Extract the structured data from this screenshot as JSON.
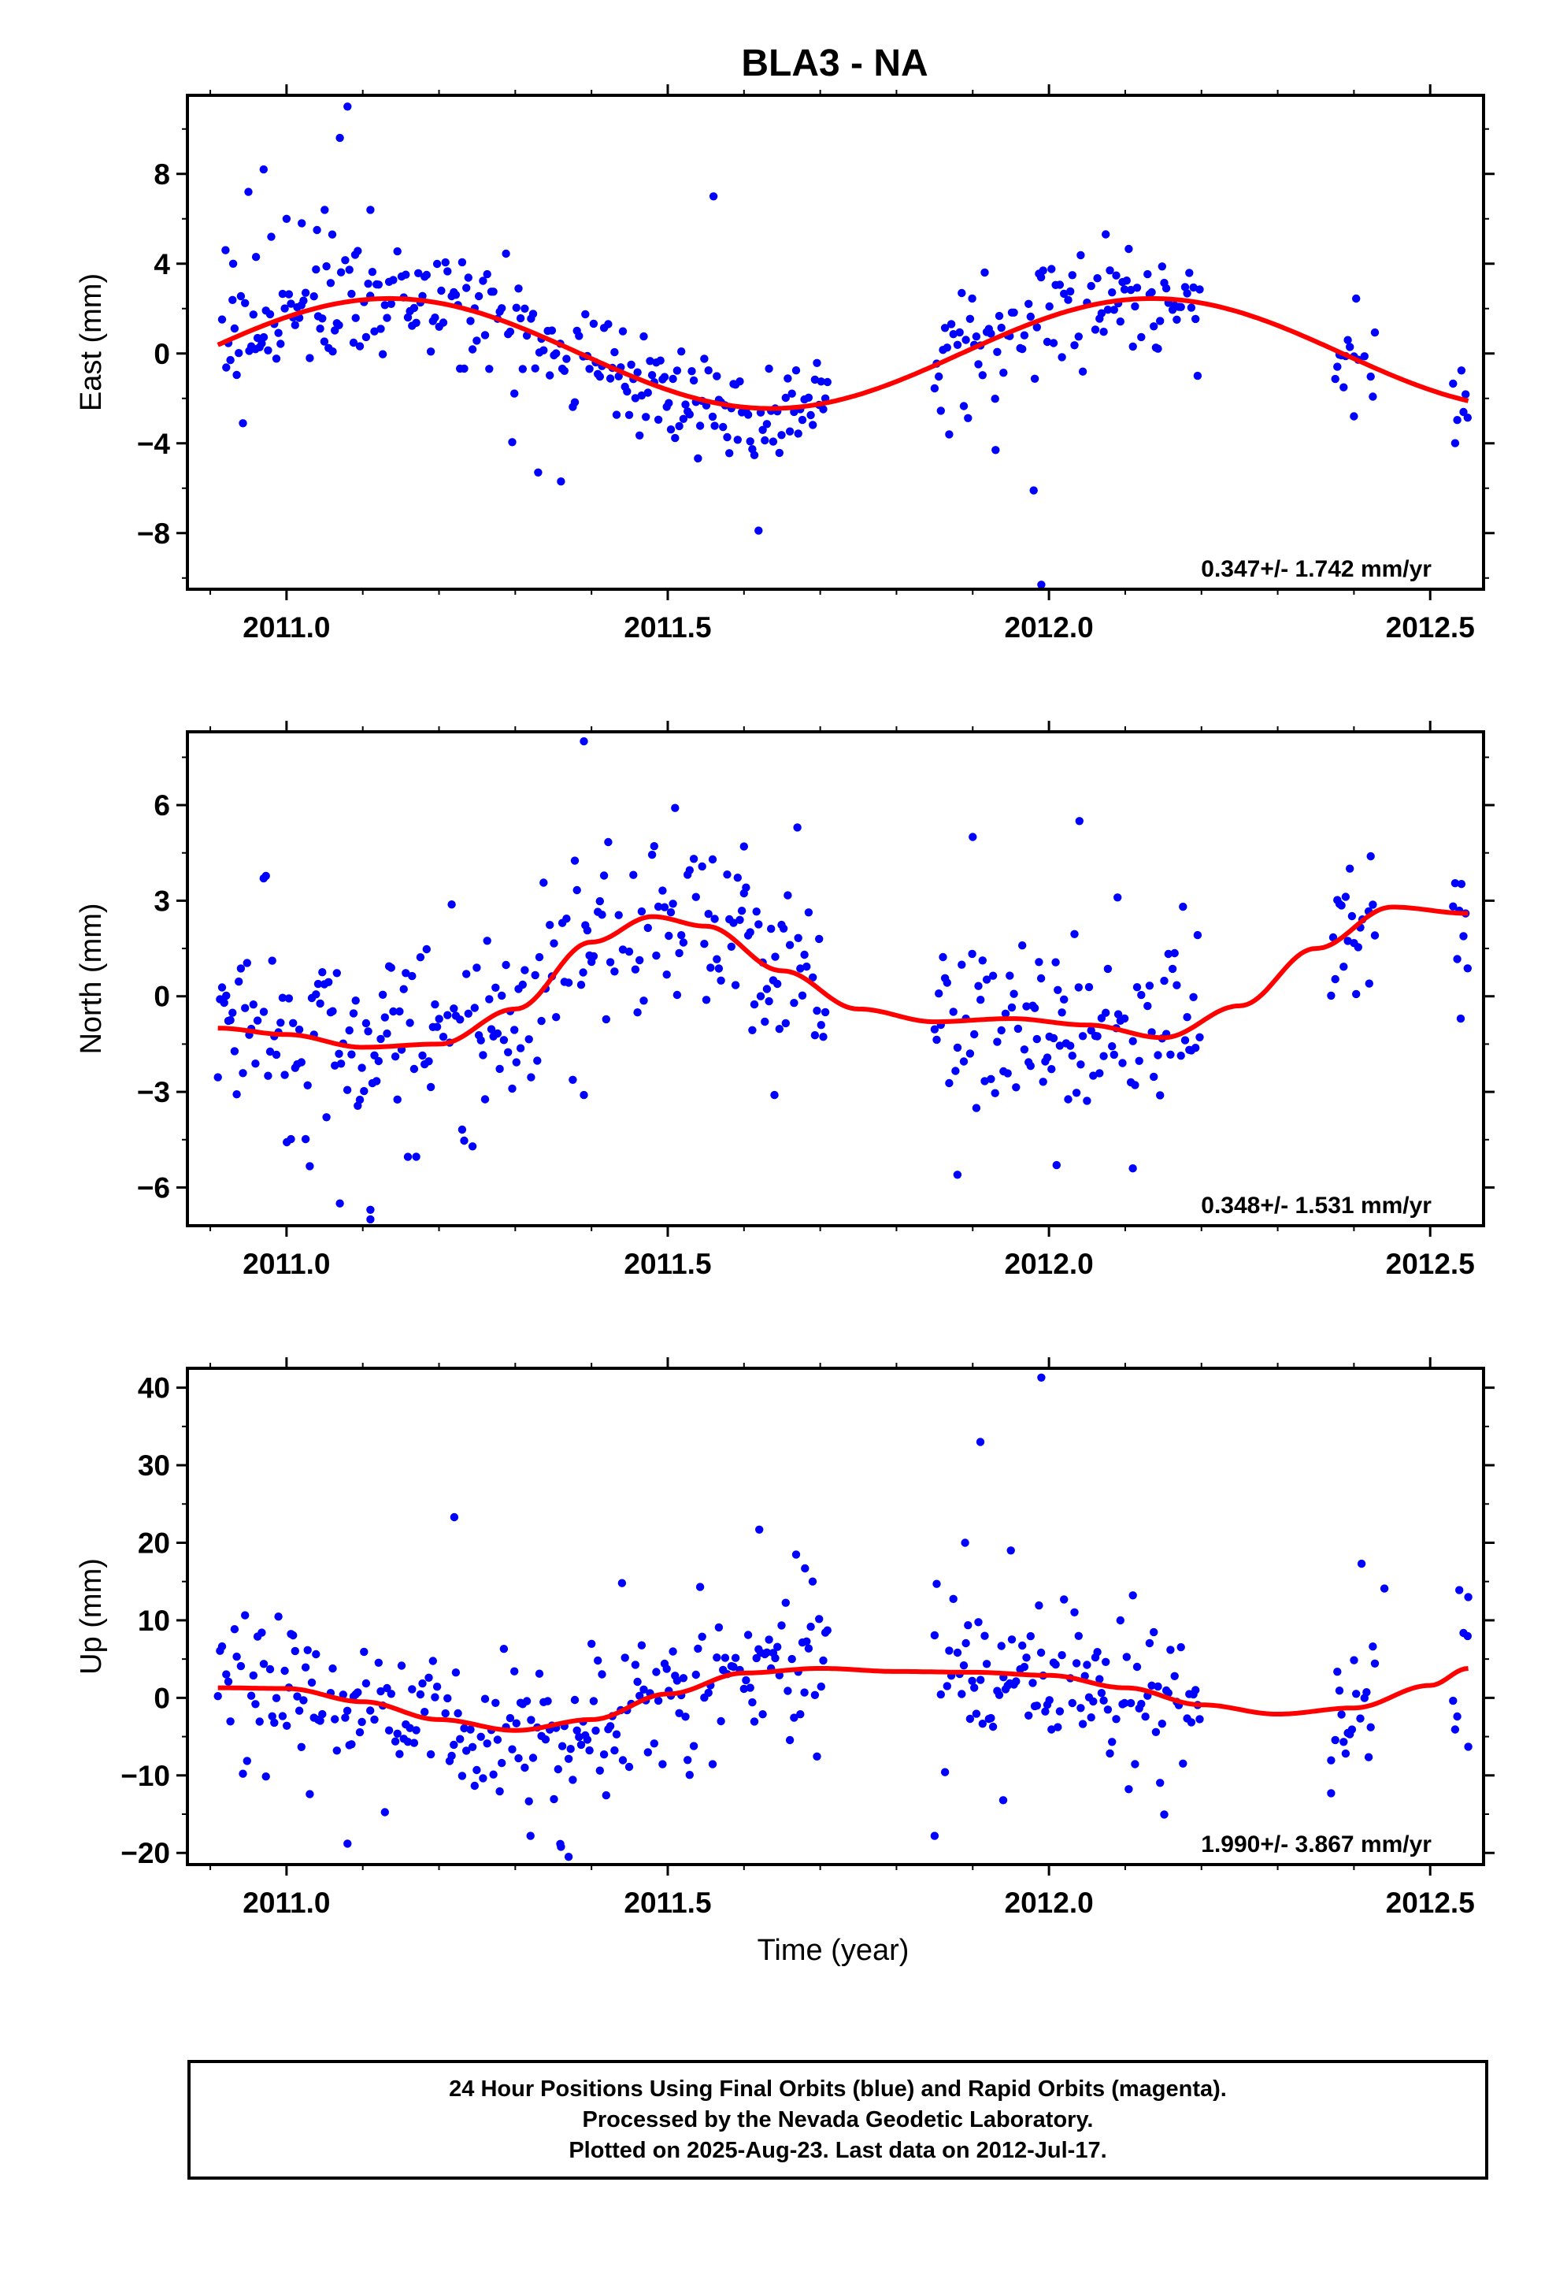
{
  "title": "BLA3 - NA",
  "x_axis": {
    "label": "Time (year)",
    "ticks": [
      "2011.0",
      "2011.5",
      "2012.0",
      "2012.5"
    ]
  },
  "colors": {
    "data": "#0000ff",
    "model": "#ff0000",
    "frame": "#000000"
  },
  "footer": {
    "line1": "24 Hour Positions Using Final Orbits (blue) and Rapid Orbits (magenta).",
    "line2": "Processed by the Nevada Geodetic Laboratory.",
    "line3": "Plotted on 2025-Aug-23. Last data on 2012-Jul-17."
  },
  "chart_data": [
    {
      "type": "scatter",
      "ylabel": "East (mm)",
      "xlim": [
        2010.87,
        2012.57
      ],
      "ylim": [
        -10.5,
        11.5
      ],
      "yticks": [
        -8,
        -4,
        0,
        4,
        8
      ],
      "rate": "0.347+/- 1.742 mm/yr",
      "model": {
        "amp": 2.45,
        "phase": 0.025,
        "offset": 0.0
      },
      "segments": [
        [
          2010.91,
          2011.71
        ],
        [
          2011.85,
          2012.2
        ],
        [
          2012.37,
          2012.43
        ],
        [
          2012.53,
          2012.55
        ]
      ],
      "scatter_sd": 1.3,
      "outliers": [
        [
          2011.08,
          11.0
        ],
        [
          2011.07,
          9.6
        ],
        [
          2011.11,
          6.4
        ],
        [
          2011.56,
          7.0
        ],
        [
          2011.33,
          -5.3
        ],
        [
          2011.36,
          -5.7
        ],
        [
          2011.98,
          -6.1
        ],
        [
          2011.99,
          -10.3
        ],
        [
          2011.93,
          -4.3
        ],
        [
          2012.4,
          -2.8
        ],
        [
          2010.92,
          4.6
        ],
        [
          2010.93,
          4.0
        ],
        [
          2010.96,
          4.3
        ],
        [
          2010.98,
          5.2
        ],
        [
          2011.0,
          6.0
        ],
        [
          2011.02,
          5.8
        ],
        [
          2011.04,
          5.5
        ],
        [
          2011.06,
          5.3
        ],
        [
          2011.09,
          4.4
        ],
        [
          2010.95,
          7.2
        ],
        [
          2010.97,
          8.2
        ],
        [
          2011.05,
          6.4
        ]
      ]
    },
    {
      "type": "scatter",
      "ylabel": "North (mm)",
      "xlim": [
        2010.87,
        2012.57
      ],
      "ylim": [
        -7.2,
        8.3
      ],
      "yticks": [
        -6,
        -3,
        0,
        3,
        6
      ],
      "rate": "0.348+/- 1.531 mm/yr",
      "model": {
        "curve": [
          [
            2010.91,
            -1.0
          ],
          [
            2011.0,
            -1.2
          ],
          [
            2011.1,
            -1.6
          ],
          [
            2011.2,
            -1.5
          ],
          [
            2011.3,
            -0.4
          ],
          [
            2011.4,
            1.7
          ],
          [
            2011.48,
            2.5
          ],
          [
            2011.55,
            2.2
          ],
          [
            2011.65,
            0.8
          ],
          [
            2011.75,
            -0.4
          ],
          [
            2011.85,
            -0.8
          ],
          [
            2011.95,
            -0.7
          ],
          [
            2012.05,
            -0.9
          ],
          [
            2012.15,
            -1.3
          ],
          [
            2012.25,
            -0.3
          ],
          [
            2012.35,
            1.5
          ],
          [
            2012.45,
            2.8
          ],
          [
            2012.55,
            2.6
          ]
        ]
      },
      "segments": [
        [
          2010.91,
          2011.71
        ],
        [
          2011.85,
          2012.2
        ],
        [
          2012.37,
          2012.43
        ],
        [
          2012.53,
          2012.55
        ]
      ],
      "scatter_sd": 1.4,
      "outliers": [
        [
          2011.39,
          8.0
        ],
        [
          2011.07,
          -6.5
        ],
        [
          2011.11,
          -6.7
        ],
        [
          2011.11,
          -7.0
        ],
        [
          2011.39,
          -3.1
        ],
        [
          2011.64,
          -3.1
        ],
        [
          2011.88,
          -5.6
        ],
        [
          2011.9,
          5.0
        ],
        [
          2012.04,
          5.5
        ],
        [
          2012.09,
          3.1
        ],
        [
          2012.01,
          -5.3
        ],
        [
          2012.11,
          -5.4
        ],
        [
          2012.42,
          0.4
        ],
        [
          2012.54,
          -0.7
        ],
        [
          2011.67,
          5.3
        ],
        [
          2011.6,
          4.7
        ],
        [
          2010.97,
          3.7
        ]
      ]
    },
    {
      "type": "scatter",
      "ylabel": "Up (mm)",
      "xlim": [
        2010.87,
        2012.57
      ],
      "ylim": [
        -21.5,
        42.5
      ],
      "yticks": [
        -20,
        -10,
        0,
        10,
        20,
        30,
        40
      ],
      "rate": "1.990+/- 3.867 mm/yr",
      "model": {
        "curve": [
          [
            2010.91,
            1.3
          ],
          [
            2011.0,
            1.2
          ],
          [
            2011.1,
            -0.5
          ],
          [
            2011.2,
            -2.8
          ],
          [
            2011.3,
            -4.2
          ],
          [
            2011.4,
            -2.8
          ],
          [
            2011.5,
            0.5
          ],
          [
            2011.6,
            3.2
          ],
          [
            2011.7,
            3.8
          ],
          [
            2011.8,
            3.4
          ],
          [
            2011.9,
            3.3
          ],
          [
            2012.0,
            2.9
          ],
          [
            2012.1,
            1.3
          ],
          [
            2012.2,
            -0.9
          ],
          [
            2012.3,
            -2.1
          ],
          [
            2012.4,
            -1.3
          ],
          [
            2012.5,
            1.6
          ],
          [
            2012.55,
            3.8
          ]
        ]
      },
      "segments": [
        [
          2010.91,
          2011.71
        ],
        [
          2011.85,
          2012.2
        ],
        [
          2012.37,
          2012.43
        ],
        [
          2012.53,
          2012.55
        ]
      ],
      "scatter_sd": 5.0,
      "outliers": [
        [
          2011.99,
          41.3
        ],
        [
          2011.91,
          33.0
        ],
        [
          2011.22,
          23.3
        ],
        [
          2011.95,
          19.0
        ],
        [
          2011.62,
          21.7
        ],
        [
          2011.89,
          20.0
        ],
        [
          2011.08,
          -18.8
        ],
        [
          2011.37,
          -20.5
        ],
        [
          2011.85,
          -17.8
        ],
        [
          2011.32,
          -17.8
        ],
        [
          2011.36,
          -19.2
        ],
        [
          2011.94,
          -13.2
        ],
        [
          2012.41,
          17.3
        ],
        [
          2012.37,
          -12.3
        ],
        [
          2012.44,
          14.1
        ],
        [
          2012.55,
          13.0
        ],
        [
          2012.55,
          -6.3
        ],
        [
          2011.44,
          14.8
        ],
        [
          2011.68,
          16.7
        ],
        [
          2011.69,
          15.0
        ]
      ]
    }
  ]
}
